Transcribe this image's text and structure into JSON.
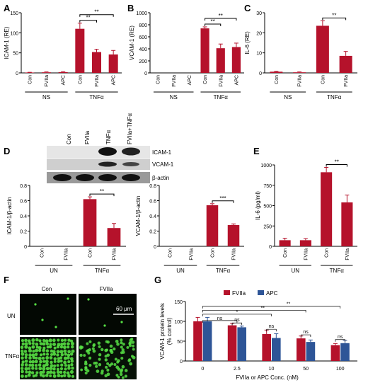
{
  "colors": {
    "red": "#b5122b",
    "blue": "#2e5597",
    "black": "#000000",
    "blot_bg": "#d8d8d8",
    "micro_bg": "#030803",
    "micro_cell": "#56e044"
  },
  "panels": {
    "A": "A",
    "B": "B",
    "C": "C",
    "D": "D",
    "E": "E",
    "F": "F",
    "G": "G"
  },
  "chart_data": [
    {
      "id": "A",
      "type": "bar",
      "categories": [
        "Con",
        "FVIIa",
        "APC",
        "Con",
        "FVIIa",
        "APC"
      ],
      "values": [
        1,
        1.5,
        2,
        110,
        52,
        46
      ],
      "errors": [
        0.5,
        1,
        1,
        14,
        7,
        10
      ],
      "ylabel": "ICAM-1 (RE)",
      "ylim": [
        0,
        150
      ],
      "yticks": [
        "0",
        "50",
        "100",
        "150"
      ],
      "groups": [
        {
          "label": "NS",
          "span": [
            0,
            2
          ]
        },
        {
          "label": "TNFα",
          "span": [
            3,
            5
          ]
        }
      ],
      "significance": [
        {
          "from": 3,
          "to": 4,
          "label": "**"
        },
        {
          "from": 3,
          "to": 5,
          "label": "**"
        }
      ]
    },
    {
      "id": "B",
      "type": "bar",
      "categories": [
        "Con",
        "FVIIa",
        "APC",
        "Con",
        "FVIIa",
        "APC"
      ],
      "values": [
        0,
        0,
        0,
        740,
        410,
        430
      ],
      "errors": [
        0,
        0,
        0,
        25,
        70,
        65
      ],
      "ylabel": "VCAM-1 (RE)",
      "ylim": [
        0,
        1000
      ],
      "yticks": [
        "0",
        "200",
        "400",
        "600",
        "800",
        "1000"
      ],
      "groups": [
        {
          "label": "NS",
          "span": [
            0,
            2
          ]
        },
        {
          "label": "TNFα",
          "span": [
            3,
            5
          ]
        }
      ],
      "significance": [
        {
          "from": 3,
          "to": 4,
          "label": "**"
        },
        {
          "from": 3,
          "to": 5,
          "label": "**"
        }
      ]
    },
    {
      "id": "C",
      "type": "bar",
      "categories": [
        "Con",
        "FVIIa",
        "Con",
        "FVIIa"
      ],
      "values": [
        0.6,
        0.3,
        23.5,
        8.5
      ],
      "errors": [
        0.2,
        0.2,
        2.5,
        2.2
      ],
      "ylabel": "IL-6 (RE)",
      "ylim": [
        0,
        30
      ],
      "yticks": [
        "0",
        "10",
        "20",
        "30"
      ],
      "groups": [
        {
          "label": "NS",
          "span": [
            0,
            1
          ]
        },
        {
          "label": "TNFα",
          "span": [
            2,
            3
          ]
        }
      ],
      "significance": [
        {
          "from": 2,
          "to": 3,
          "label": "**"
        }
      ]
    },
    {
      "id": "D1",
      "type": "bar",
      "categories": [
        "Con",
        "FVIIa",
        "Con",
        "FVIIa"
      ],
      "values": [
        0,
        0,
        0.62,
        0.24
      ],
      "errors": [
        0,
        0,
        0.03,
        0.06
      ],
      "ylabel": "ICAM-1/β-actin",
      "ylim": [
        0,
        0.8
      ],
      "yticks": [
        "0",
        "0.2",
        "0.4",
        "0.6",
        "0.8"
      ],
      "groups": [
        {
          "label": "UN",
          "span": [
            0,
            1
          ]
        },
        {
          "label": "TNFα",
          "span": [
            2,
            3
          ]
        }
      ],
      "significance": [
        {
          "from": 2,
          "to": 3,
          "label": "**"
        }
      ]
    },
    {
      "id": "D2",
      "type": "bar",
      "categories": [
        "Con",
        "FVIIa",
        "Con",
        "FVIIa"
      ],
      "values": [
        0,
        0,
        0.54,
        0.28
      ],
      "errors": [
        0,
        0,
        0.02,
        0.015
      ],
      "ylabel": "VCAM-1/β-actin",
      "ylim": [
        0,
        0.8
      ],
      "yticks": [
        "0",
        "0.2",
        "0.4",
        "0.6",
        "0.8"
      ],
      "groups": [
        {
          "label": "UN",
          "span": [
            0,
            1
          ]
        },
        {
          "label": "TNFα",
          "span": [
            2,
            3
          ]
        }
      ],
      "significance": [
        {
          "from": 2,
          "to": 3,
          "label": "***"
        }
      ]
    },
    {
      "id": "E",
      "type": "bar",
      "categories": [
        "Con",
        "FVIIa",
        "Con",
        "FVIIa"
      ],
      "values": [
        75,
        75,
        910,
        540
      ],
      "errors": [
        25,
        20,
        60,
        90
      ],
      "ylabel": "IL-6 (pg/ml)",
      "ylim": [
        0,
        1000
      ],
      "yticks": [
        "0",
        "250",
        "500",
        "750",
        "1000"
      ],
      "groups": [
        {
          "label": "UN",
          "span": [
            0,
            1
          ]
        },
        {
          "label": "TNFα",
          "span": [
            2,
            3
          ]
        }
      ],
      "significance": [
        {
          "from": 2,
          "to": 3,
          "label": "**"
        }
      ]
    },
    {
      "id": "G",
      "type": "bar",
      "categories": [
        "0",
        "2.5",
        "10",
        "50",
        "100"
      ],
      "series": [
        {
          "name": "FVIIa",
          "values": [
            100,
            90,
            68,
            57,
            40
          ],
          "errors": [
            10,
            5,
            10,
            6,
            4
          ]
        },
        {
          "name": "APC",
          "values": [
            100,
            85,
            58,
            48,
            45
          ],
          "errors": [
            10,
            3,
            11,
            5,
            7
          ]
        }
      ],
      "ylabel": "VCAM-1 protein levels",
      "ylabel2": "(% control)",
      "xlabel": "FVIIa or APC Conc. (nM)",
      "ylim": [
        0,
        150
      ],
      "yticks": [
        "0",
        "50",
        "100",
        "150"
      ],
      "legend": "top",
      "significance": [
        {
          "from": 0,
          "to": 1,
          "label": "ns",
          "level": 102
        },
        {
          "from": 0,
          "to": 2,
          "label": "*",
          "level": 118
        },
        {
          "from": 0,
          "to": 3,
          "label": "**",
          "level": 128
        },
        {
          "from": 0,
          "to": 4,
          "label": "**",
          "level": 138
        },
        {
          "from": 1,
          "to": 1,
          "label": "ns",
          "level": 96,
          "pair": true
        },
        {
          "from": 2,
          "to": 2,
          "label": "ns",
          "level": 80,
          "pair": true
        },
        {
          "from": 3,
          "to": 3,
          "label": "ns",
          "level": 66,
          "pair": true
        },
        {
          "from": 4,
          "to": 4,
          "label": "ns",
          "level": 54,
          "pair": true
        }
      ]
    }
  ],
  "blot": {
    "lanes": [
      "Con",
      "FVIIa",
      "TNFα",
      "FVIIa+TNFα"
    ],
    "bands": [
      "ICAM-1",
      "VCAM-1",
      "β-actin"
    ]
  },
  "micro": {
    "cols": [
      "Con",
      "FVIIa"
    ],
    "rows": [
      "UN",
      "TNFα"
    ],
    "scale": "60 μm"
  }
}
